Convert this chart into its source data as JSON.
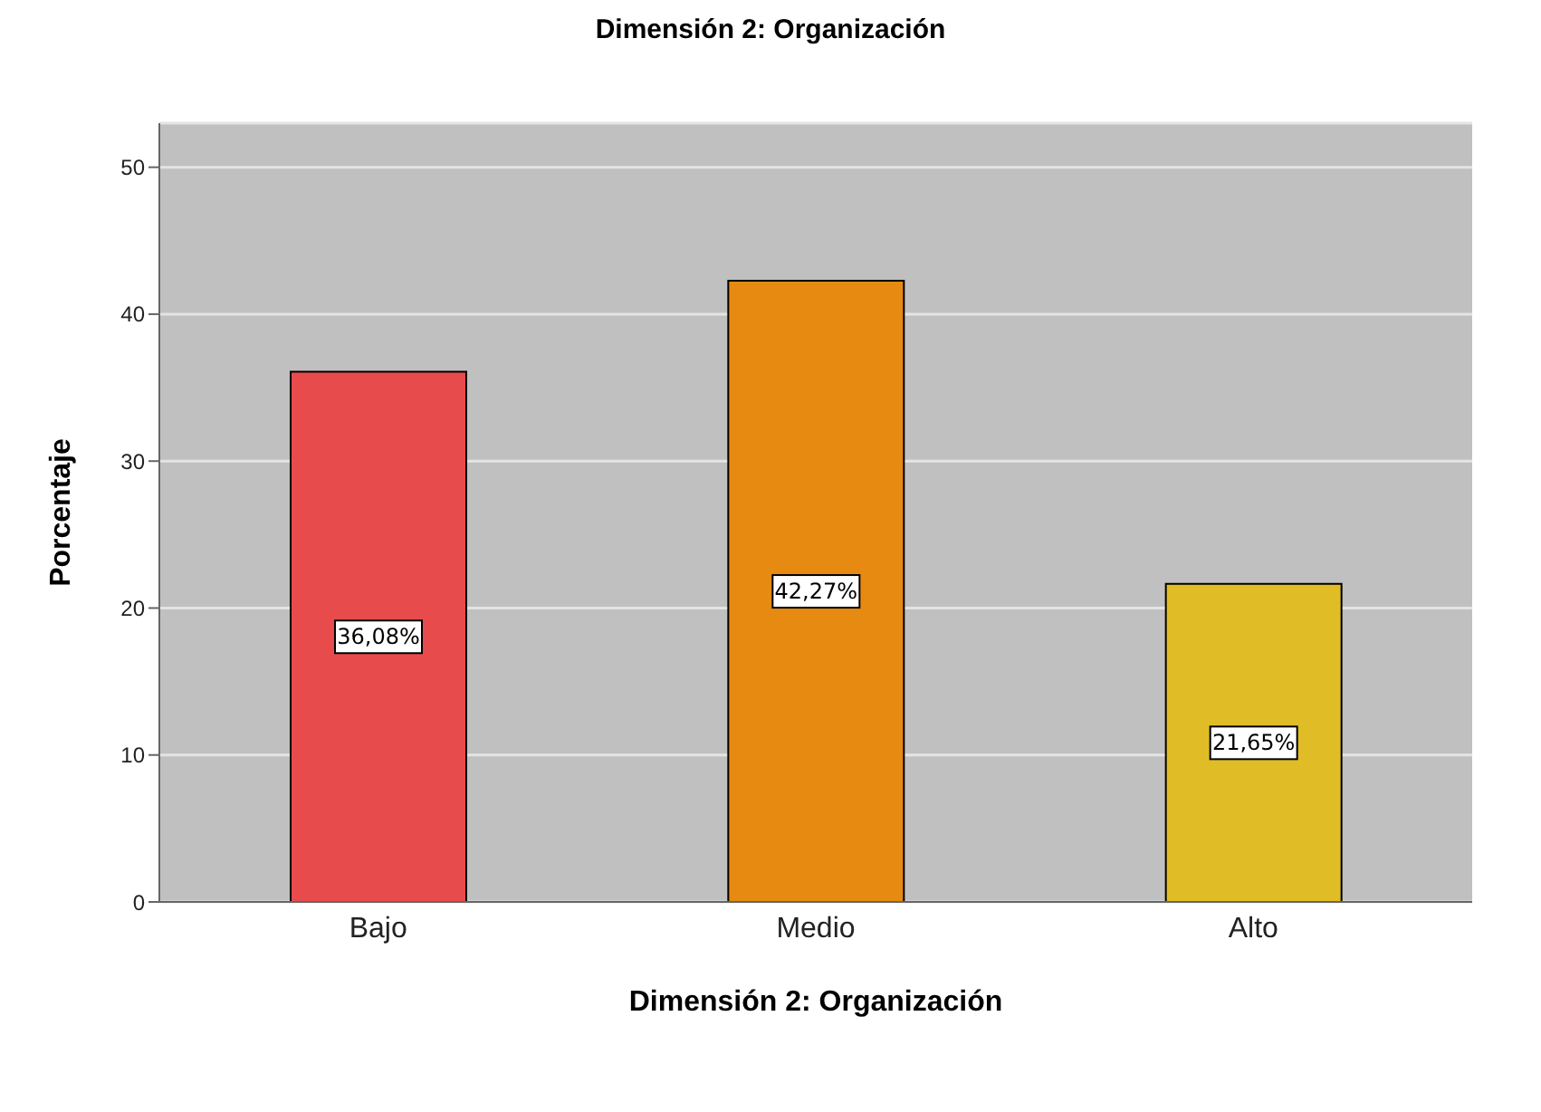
{
  "chart_data": {
    "type": "bar",
    "title": "Dimensión 2: Organización",
    "xlabel": "Dimensión 2: Organización",
    "ylabel": "Porcentaje",
    "categories": [
      "Bajo",
      "Medio",
      "Alto"
    ],
    "values": [
      36.08,
      42.27,
      21.65
    ],
    "colors": [
      "#e84b4b",
      "#e68a12",
      "#e0bd26"
    ],
    "value_labels": [
      "36,08%",
      "42,27%",
      "21,65%"
    ],
    "ylim": [
      0,
      53
    ],
    "yticks": [
      0,
      10,
      20,
      30,
      40,
      50
    ],
    "grid": "y"
  }
}
